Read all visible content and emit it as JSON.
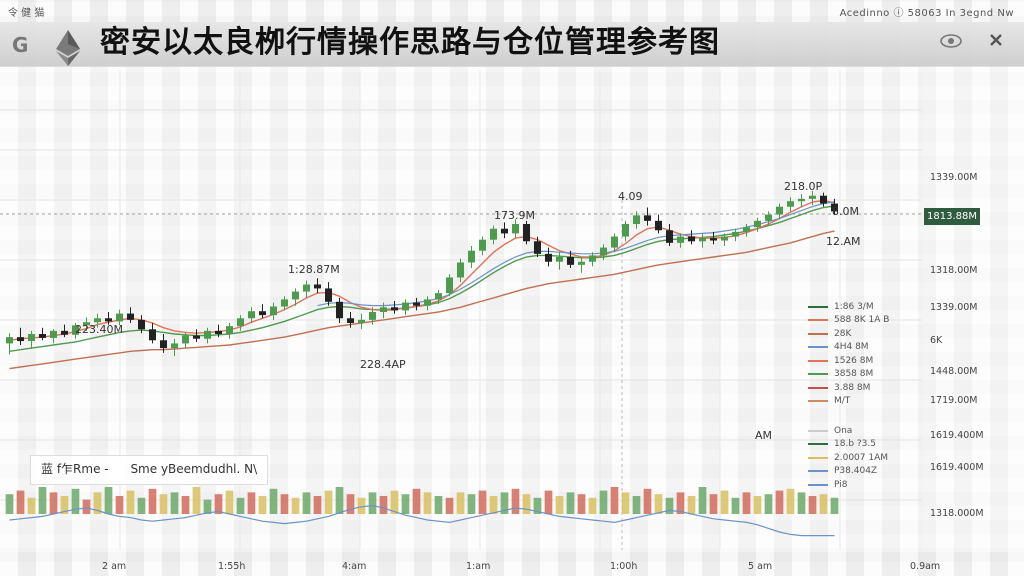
{
  "title": "密安以太良栁行情操作思路与仓位管理参考图",
  "top_strip": {
    "left": "令 健 猫",
    "right": "Acedinno ⓘ 58063 In 3egnd Nw"
  },
  "colors": {
    "up": "#4e9a4e",
    "down": "#222222",
    "ma_fast": "#e0735a",
    "ma_mid": "#4e9a4e",
    "ma_slow": "#c07050",
    "ma_blue": "#6b93c6",
    "price_tag_bg": "#2f5c3f",
    "vol_green": "#6aa86a",
    "vol_red": "#d06a5a",
    "vol_yellow": "#d8c060"
  },
  "icons": {
    "left": "G",
    "eth": "ethereum-logo",
    "eye": "eye-icon",
    "close": "close-icon"
  },
  "price_tag": "1813.88M",
  "right_axis": [
    "1339.00M",
    "1813.88M",
    "1318.00M",
    "1339.00M",
    "6K",
    "1448.00M",
    "1719.00M",
    "1619.400M",
    "1619.400M",
    "1318.000M"
  ],
  "bottom_axis": [
    "2 am",
    "1:55h",
    "4:am",
    "1:am",
    "1:00h",
    "5 am",
    "0.9am"
  ],
  "annotations": [
    {
      "label": "223.40M"
    },
    {
      "label": "1:28.87M"
    },
    {
      "label": "173.9M"
    },
    {
      "label": "4.09"
    },
    {
      "label": "218.0P"
    },
    {
      "label": "8.0M"
    },
    {
      "label": "12.AM"
    },
    {
      "label": "228.4AP"
    },
    {
      "label": "AM"
    }
  ],
  "info_box": {
    "left": "蓝 f乍Rme  -",
    "right": "Sme yBeemdudhl. N\\"
  },
  "legend": [
    {
      "label": "1:86 3/M"
    },
    {
      "label": "588 8K 1A B"
    },
    {
      "label": "28K"
    },
    {
      "label": "4H4 8M"
    },
    {
      "label": "1526 8M"
    },
    {
      "label": "3858 8M"
    },
    {
      "label": "3.88 8M"
    },
    {
      "label": "M/T"
    }
  ],
  "legend2": [
    {
      "label": "Ona"
    },
    {
      "label": "18.b ?3.5"
    },
    {
      "label": "2.0007 1AM"
    },
    {
      "label": "P38.404Z"
    },
    {
      "label": "Pi8"
    }
  ],
  "chart_data": {
    "type": "candlestick",
    "title": "密安以太良栁行情操作思路与仓位管理参考图",
    "candles": [
      {
        "o": 1372,
        "h": 1385,
        "l": 1358,
        "c": 1380
      },
      {
        "o": 1380,
        "h": 1392,
        "l": 1370,
        "c": 1375
      },
      {
        "o": 1375,
        "h": 1388,
        "l": 1365,
        "c": 1384
      },
      {
        "o": 1384,
        "h": 1392,
        "l": 1376,
        "c": 1379
      },
      {
        "o": 1379,
        "h": 1390,
        "l": 1372,
        "c": 1388
      },
      {
        "o": 1388,
        "h": 1396,
        "l": 1380,
        "c": 1383
      },
      {
        "o": 1383,
        "h": 1398,
        "l": 1378,
        "c": 1395
      },
      {
        "o": 1395,
        "h": 1405,
        "l": 1388,
        "c": 1399
      },
      {
        "o": 1399,
        "h": 1410,
        "l": 1392,
        "c": 1404
      },
      {
        "o": 1404,
        "h": 1412,
        "l": 1396,
        "c": 1400
      },
      {
        "o": 1400,
        "h": 1415,
        "l": 1395,
        "c": 1410
      },
      {
        "o": 1410,
        "h": 1418,
        "l": 1398,
        "c": 1402
      },
      {
        "o": 1402,
        "h": 1408,
        "l": 1385,
        "c": 1390
      },
      {
        "o": 1390,
        "h": 1398,
        "l": 1372,
        "c": 1376
      },
      {
        "o": 1376,
        "h": 1384,
        "l": 1360,
        "c": 1366
      },
      {
        "o": 1366,
        "h": 1378,
        "l": 1356,
        "c": 1372
      },
      {
        "o": 1372,
        "h": 1386,
        "l": 1366,
        "c": 1382
      },
      {
        "o": 1382,
        "h": 1390,
        "l": 1374,
        "c": 1378
      },
      {
        "o": 1378,
        "h": 1392,
        "l": 1372,
        "c": 1388
      },
      {
        "o": 1388,
        "h": 1396,
        "l": 1380,
        "c": 1384
      },
      {
        "o": 1384,
        "h": 1398,
        "l": 1378,
        "c": 1394
      },
      {
        "o": 1394,
        "h": 1408,
        "l": 1388,
        "c": 1404
      },
      {
        "o": 1404,
        "h": 1418,
        "l": 1398,
        "c": 1413
      },
      {
        "o": 1413,
        "h": 1422,
        "l": 1404,
        "c": 1408
      },
      {
        "o": 1408,
        "h": 1424,
        "l": 1402,
        "c": 1419
      },
      {
        "o": 1419,
        "h": 1432,
        "l": 1414,
        "c": 1428
      },
      {
        "o": 1428,
        "h": 1442,
        "l": 1420,
        "c": 1438
      },
      {
        "o": 1438,
        "h": 1452,
        "l": 1430,
        "c": 1447
      },
      {
        "o": 1447,
        "h": 1455,
        "l": 1436,
        "c": 1442
      },
      {
        "o": 1442,
        "h": 1450,
        "l": 1420,
        "c": 1425
      },
      {
        "o": 1425,
        "h": 1430,
        "l": 1398,
        "c": 1404
      },
      {
        "o": 1404,
        "h": 1412,
        "l": 1392,
        "c": 1398
      },
      {
        "o": 1398,
        "h": 1410,
        "l": 1390,
        "c": 1402
      },
      {
        "o": 1402,
        "h": 1418,
        "l": 1396,
        "c": 1412
      },
      {
        "o": 1412,
        "h": 1424,
        "l": 1404,
        "c": 1418
      },
      {
        "o": 1418,
        "h": 1426,
        "l": 1410,
        "c": 1414
      },
      {
        "o": 1414,
        "h": 1428,
        "l": 1408,
        "c": 1424
      },
      {
        "o": 1424,
        "h": 1430,
        "l": 1414,
        "c": 1420
      },
      {
        "o": 1420,
        "h": 1432,
        "l": 1414,
        "c": 1428
      },
      {
        "o": 1428,
        "h": 1440,
        "l": 1422,
        "c": 1436
      },
      {
        "o": 1436,
        "h": 1460,
        "l": 1432,
        "c": 1456
      },
      {
        "o": 1456,
        "h": 1480,
        "l": 1450,
        "c": 1475
      },
      {
        "o": 1475,
        "h": 1496,
        "l": 1468,
        "c": 1490
      },
      {
        "o": 1490,
        "h": 1508,
        "l": 1484,
        "c": 1504
      },
      {
        "o": 1504,
        "h": 1522,
        "l": 1498,
        "c": 1518
      },
      {
        "o": 1518,
        "h": 1526,
        "l": 1506,
        "c": 1512
      },
      {
        "o": 1512,
        "h": 1530,
        "l": 1506,
        "c": 1524
      },
      {
        "o": 1524,
        "h": 1528,
        "l": 1498,
        "c": 1502
      },
      {
        "o": 1502,
        "h": 1508,
        "l": 1482,
        "c": 1486
      },
      {
        "o": 1486,
        "h": 1494,
        "l": 1470,
        "c": 1476
      },
      {
        "o": 1476,
        "h": 1488,
        "l": 1466,
        "c": 1482
      },
      {
        "o": 1482,
        "h": 1490,
        "l": 1468,
        "c": 1472
      },
      {
        "o": 1472,
        "h": 1482,
        "l": 1462,
        "c": 1476
      },
      {
        "o": 1476,
        "h": 1488,
        "l": 1470,
        "c": 1484
      },
      {
        "o": 1484,
        "h": 1498,
        "l": 1478,
        "c": 1494
      },
      {
        "o": 1494,
        "h": 1512,
        "l": 1488,
        "c": 1508
      },
      {
        "o": 1508,
        "h": 1528,
        "l": 1502,
        "c": 1524
      },
      {
        "o": 1524,
        "h": 1540,
        "l": 1518,
        "c": 1535
      },
      {
        "o": 1535,
        "h": 1545,
        "l": 1522,
        "c": 1528
      },
      {
        "o": 1528,
        "h": 1536,
        "l": 1512,
        "c": 1516
      },
      {
        "o": 1516,
        "h": 1524,
        "l": 1496,
        "c": 1500
      },
      {
        "o": 1500,
        "h": 1512,
        "l": 1494,
        "c": 1508
      },
      {
        "o": 1508,
        "h": 1516,
        "l": 1498,
        "c": 1502
      },
      {
        "o": 1502,
        "h": 1512,
        "l": 1494,
        "c": 1506
      },
      {
        "o": 1506,
        "h": 1514,
        "l": 1498,
        "c": 1503
      },
      {
        "o": 1503,
        "h": 1512,
        "l": 1496,
        "c": 1508
      },
      {
        "o": 1508,
        "h": 1518,
        "l": 1502,
        "c": 1514
      },
      {
        "o": 1514,
        "h": 1524,
        "l": 1508,
        "c": 1520
      },
      {
        "o": 1520,
        "h": 1532,
        "l": 1514,
        "c": 1528
      },
      {
        "o": 1528,
        "h": 1540,
        "l": 1522,
        "c": 1536
      },
      {
        "o": 1536,
        "h": 1550,
        "l": 1530,
        "c": 1546
      },
      {
        "o": 1546,
        "h": 1558,
        "l": 1540,
        "c": 1553
      },
      {
        "o": 1553,
        "h": 1562,
        "l": 1545,
        "c": 1556
      },
      {
        "o": 1556,
        "h": 1566,
        "l": 1548,
        "c": 1560
      },
      {
        "o": 1560,
        "h": 1564,
        "l": 1546,
        "c": 1550
      },
      {
        "o": 1550,
        "h": 1556,
        "l": 1536,
        "c": 1540
      }
    ],
    "ma_fast": [
      1376,
      1378,
      1379,
      1380,
      1382,
      1384,
      1387,
      1391,
      1396,
      1399,
      1402,
      1404,
      1402,
      1398,
      1392,
      1388,
      1386,
      1385,
      1386,
      1387,
      1389,
      1393,
      1399,
      1404,
      1409,
      1415,
      1422,
      1430,
      1436,
      1437,
      1432,
      1424,
      1418,
      1415,
      1414,
      1415,
      1417,
      1419,
      1422,
      1426,
      1434,
      1446,
      1460,
      1474,
      1488,
      1498,
      1506,
      1508,
      1504,
      1497,
      1490,
      1486,
      1482,
      1482,
      1484,
      1490,
      1499,
      1510,
      1518,
      1520,
      1516,
      1511,
      1508,
      1506,
      1506,
      1507,
      1509,
      1513,
      1518,
      1524,
      1531,
      1539,
      1546,
      1552,
      1554,
      1551
    ],
    "ma_mid": [
      1362,
      1364,
      1366,
      1368,
      1370,
      1372,
      1374,
      1377,
      1380,
      1383,
      1386,
      1388,
      1389,
      1388,
      1386,
      1384,
      1383,
      1382,
      1382,
      1383,
      1384,
      1386,
      1389,
      1392,
      1396,
      1400,
      1405,
      1410,
      1415,
      1418,
      1419,
      1418,
      1416,
      1415,
      1415,
      1416,
      1417,
      1419,
      1421,
      1424,
      1429,
      1436,
      1444,
      1453,
      1462,
      1470,
      1477,
      1482,
      1484,
      1484,
      1483,
      1482,
      1481,
      1481,
      1482,
      1484,
      1488,
      1493,
      1498,
      1502,
      1504,
      1505,
      1506,
      1507,
      1508,
      1510,
      1512,
      1515,
      1518,
      1522,
      1526,
      1531,
      1536,
      1541,
      1545,
      1547
    ],
    "ma_slow": [
      1340,
      1342,
      1344,
      1346,
      1348,
      1350,
      1352,
      1354,
      1356,
      1358,
      1360,
      1362,
      1363,
      1364,
      1364,
      1365,
      1366,
      1367,
      1368,
      1369,
      1370,
      1372,
      1374,
      1376,
      1378,
      1380,
      1383,
      1386,
      1389,
      1392,
      1394,
      1396,
      1398,
      1400,
      1402,
      1404,
      1406,
      1408,
      1410,
      1412,
      1415,
      1418,
      1422,
      1426,
      1430,
      1434,
      1438,
      1442,
      1445,
      1448,
      1450,
      1452,
      1454,
      1456,
      1458,
      1460,
      1463,
      1466,
      1469,
      1472,
      1474,
      1476,
      1478,
      1480,
      1482,
      1484,
      1486,
      1488,
      1491,
      1494,
      1497,
      1500,
      1504,
      1508,
      1512,
      1515
    ],
    "ma_blue_start": 28,
    "volume": [
      22,
      26,
      18,
      30,
      24,
      20,
      28,
      16,
      24,
      30,
      20,
      26,
      18,
      28,
      22,
      24,
      20,
      30,
      16,
      22,
      26,
      18,
      24,
      20,
      28,
      22,
      18,
      24,
      20,
      26,
      30,
      22,
      18,
      24,
      20,
      26,
      22,
      28,
      24,
      20,
      18,
      24,
      22,
      26,
      20,
      24,
      28,
      22,
      18,
      26,
      20,
      24,
      22,
      18,
      26,
      30,
      24,
      20,
      28,
      22,
      18,
      24,
      20,
      30,
      22,
      26,
      18,
      24,
      20,
      22,
      26,
      28,
      24,
      20,
      22,
      18
    ],
    "vol_line": [
      30,
      32,
      34,
      36,
      40,
      44,
      48,
      50,
      46,
      40,
      36,
      34,
      30,
      28,
      30,
      32,
      34,
      38,
      42,
      44,
      40,
      36,
      32,
      28,
      26,
      24,
      26,
      28,
      32,
      36,
      42,
      48,
      52,
      54,
      50,
      44,
      38,
      34,
      30,
      28,
      26,
      30,
      34,
      38,
      42,
      46,
      50,
      48,
      44,
      40,
      36,
      34,
      32,
      30,
      28,
      26,
      30,
      34,
      38,
      42,
      46,
      44,
      40,
      36,
      32,
      30,
      28,
      26,
      22,
      16,
      10,
      6,
      4,
      4,
      4,
      4
    ],
    "ylim": [
      1300,
      1580
    ],
    "grid": true,
    "legend_placement": "right"
  }
}
